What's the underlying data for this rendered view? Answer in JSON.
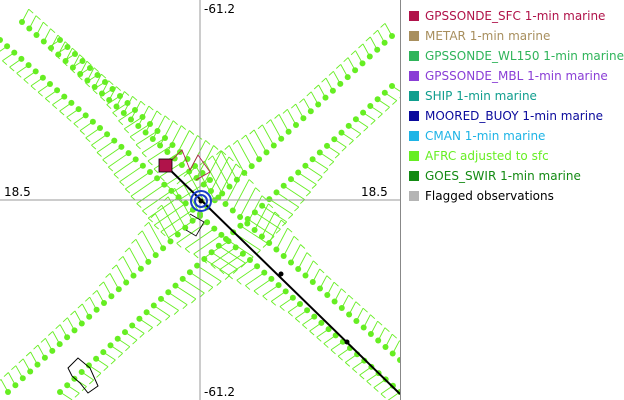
{
  "map": {
    "axis_labels": {
      "top": "-61.2",
      "bottom": "-61.2",
      "left": "18.5",
      "right": "18.5"
    }
  },
  "legend": {
    "items": [
      {
        "label": "GPSSONDE_SFC 1-min marine",
        "color": "#b0134a"
      },
      {
        "label": "METAR 1-min marine",
        "color": "#a88f5e"
      },
      {
        "label": "GPSSONDE_WL150 1-min marine",
        "color": "#2fb45a"
      },
      {
        "label": "GPSSONDE_MBL 1-min marine",
        "color": "#8a3ed6"
      },
      {
        "label": "SHIP 1-min marine",
        "color": "#109e8e"
      },
      {
        "label": "MOORED_BUOY 1-min marine",
        "color": "#0a0a9c"
      },
      {
        "label": "CMAN 1-min marine",
        "color": "#1eb4e6"
      },
      {
        "label": "AFRC adjusted to sfc",
        "color": "#66ee22"
      },
      {
        "label": "GOES_SWIR 1-min marine",
        "color": "#138a13"
      },
      {
        "label": "Flagged observations",
        "color": "#b4b4b4",
        "text_color": "#000000"
      }
    ]
  },
  "colors": {
    "afrc": "#66ee22",
    "track": "#000000",
    "center_marker": "#1a3fc8",
    "sfc_marker": "#b0134a",
    "crosshair": "#999999"
  }
}
